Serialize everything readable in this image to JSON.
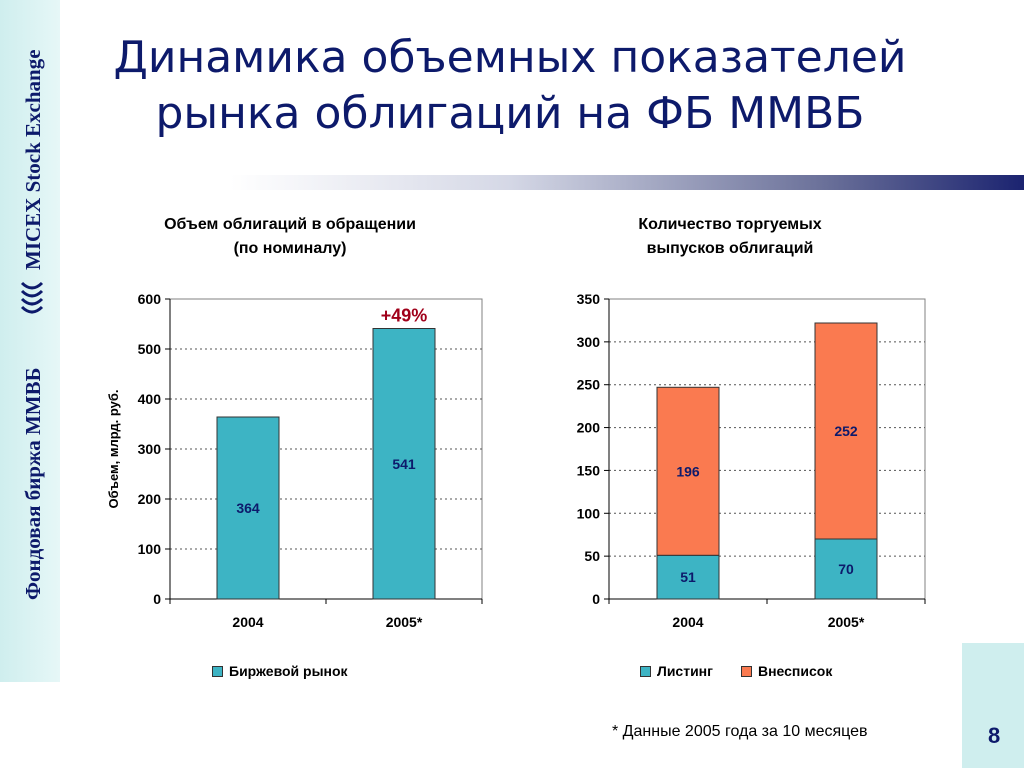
{
  "sidebar": {
    "brand_ru": "Фондовая биржа ММВБ",
    "brand_en": "MICEX Stock Exchange",
    "color": "#0d1a6b"
  },
  "slide": {
    "title_line1": "Динамика объемных показателей",
    "title_line2": "рынка облигаций на ФБ ММВБ",
    "footnote": "* Данные 2005 года за 10 месяцев",
    "page_number": "8"
  },
  "chart_data": [
    {
      "type": "bar",
      "title_line1": "Объем облигаций в обращении",
      "title_line2": "(по номиналу)",
      "categories": [
        "2004",
        "2005*"
      ],
      "series": [
        {
          "name": "Биржевой рынок",
          "values": [
            364,
            541
          ],
          "color": "#3db4c4"
        }
      ],
      "ylabel": "Объем, млрд. руб.",
      "ylim": [
        0,
        600
      ],
      "yticks": [
        0,
        100,
        200,
        300,
        400,
        500,
        600
      ],
      "annotation": {
        "text": "+49%",
        "category": "2005*",
        "color": "#a0001a"
      },
      "grid": true,
      "legend": "bottom"
    },
    {
      "type": "bar",
      "stacked": true,
      "title_line1": "Количество торгуемых",
      "title_line2": "выпусков облигаций",
      "categories": [
        "2004",
        "2005*"
      ],
      "series": [
        {
          "name": "Листинг",
          "values": [
            51,
            70
          ],
          "color": "#3db4c4"
        },
        {
          "name": "Внесписок",
          "values": [
            196,
            252
          ],
          "color": "#fa7a50"
        }
      ],
      "ylim": [
        0,
        350
      ],
      "yticks": [
        0,
        50,
        100,
        150,
        200,
        250,
        300,
        350
      ],
      "grid": true,
      "legend": "bottom"
    }
  ]
}
